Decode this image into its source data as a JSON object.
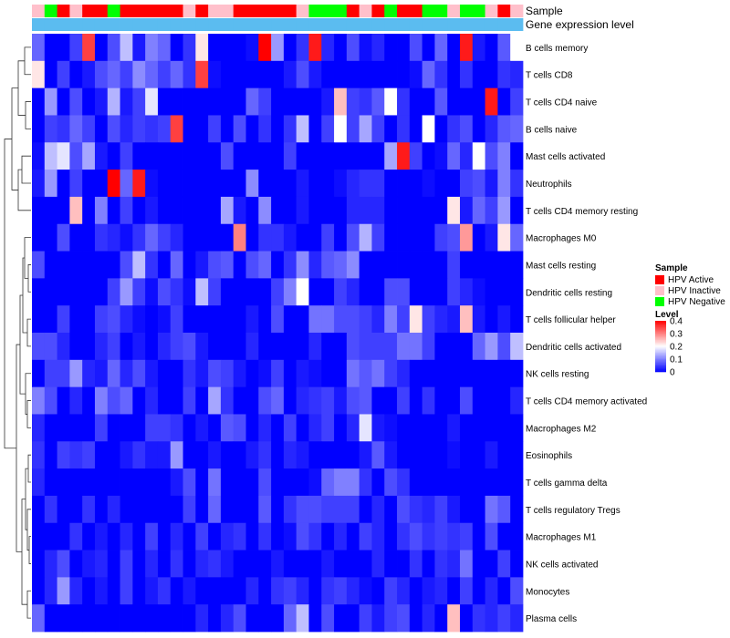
{
  "chart_data": {
    "type": "heatmap",
    "rows": [
      "B cells memory",
      "T cells CD8",
      "T cells CD4 naive",
      "B cells naive",
      "Mast cells activated",
      "Neutrophils",
      "T cells CD4 memory resting",
      "Macrophages M0",
      "Mast cells resting",
      "Dendritic cells resting",
      "T cells follicular helper",
      "Dendritic cells activated",
      "NK cells resting",
      "T cells CD4 memory activated",
      "Macrophages M2",
      "Eosinophils",
      "T cells gamma delta",
      "T cells regulatory  Tregs",
      "Macrophages M1",
      "NK cells activated",
      "Monocytes",
      "Plasma cells"
    ],
    "sample_groups": [
      1,
      2,
      0,
      1,
      0,
      0,
      2,
      0,
      0,
      0,
      0,
      0,
      1,
      0,
      1,
      1,
      0,
      0,
      0,
      0,
      0,
      1,
      2,
      2,
      2,
      0,
      1,
      0,
      2,
      0,
      0,
      2,
      2,
      1,
      2,
      2,
      1,
      0,
      1
    ],
    "annotation_rows": [
      "Sample",
      "Gene expression level"
    ],
    "gene_expression_level": [
      0.05,
      0.05,
      0.05,
      0.05,
      0.05,
      0.05,
      0.05,
      0.05,
      0.05,
      0.05,
      0.05,
      0.05,
      0.05,
      0.05,
      0.05,
      0.05,
      0.05,
      0.05,
      0.05,
      0.05,
      0.05,
      0.05,
      0.05,
      0.05,
      0.05,
      0.05,
      0.05,
      0.05,
      0.05,
      0.05,
      0.05,
      0.05,
      0.05,
      0.05,
      0.05,
      0.05,
      0.05,
      0.05,
      0.05
    ],
    "values": [
      [
        0.08,
        0,
        0,
        0.05,
        0.35,
        0,
        0.06,
        0.15,
        0.02,
        0.1,
        0.08,
        0,
        0.04,
        0.22,
        0,
        0,
        0,
        0.01,
        0.4,
        0.12,
        0,
        0.04,
        0.38,
        0.03,
        0,
        0.06,
        0.01,
        0.03,
        0,
        0,
        0.06,
        0,
        0.08,
        0,
        0.38,
        0.02,
        0,
        0.07,
        0.2
      ],
      [
        0.22,
        0,
        0.05,
        0,
        0.02,
        0.06,
        0.08,
        0.05,
        0.11,
        0.08,
        0.05,
        0.08,
        0.04,
        0.35,
        0.01,
        0,
        0,
        0,
        0,
        0,
        0.02,
        0.06,
        0.02,
        0,
        0,
        0,
        0,
        0,
        0,
        0,
        0.01,
        0.08,
        0.04,
        0,
        0.04,
        0,
        0,
        0.04,
        0.03
      ],
      [
        0,
        0.12,
        0,
        0.06,
        0,
        0.02,
        0.14,
        0.02,
        0.05,
        0.18,
        0,
        0,
        0,
        0,
        0,
        0,
        0,
        0.08,
        0.05,
        0,
        0,
        0,
        0,
        0.02,
        0.25,
        0.05,
        0.04,
        0.07,
        0.2,
        0.04,
        0,
        0,
        0.07,
        0,
        0,
        0,
        0.38,
        0,
        0.05
      ],
      [
        0,
        0.05,
        0.04,
        0.08,
        0.05,
        0,
        0.06,
        0.03,
        0.05,
        0.04,
        0.05,
        0.35,
        0,
        0,
        0.05,
        0,
        0.06,
        0,
        0.04,
        0,
        0.04,
        0.15,
        0,
        0.05,
        0.2,
        0.05,
        0.13,
        0.05,
        0,
        0.04,
        0,
        0.2,
        0,
        0.04,
        0.06,
        0,
        0.03,
        0.07,
        0.08
      ],
      [
        0.01,
        0.15,
        0.18,
        0.06,
        0.13,
        0.02,
        0,
        0.05,
        0,
        0,
        0,
        0,
        0,
        0,
        0,
        0.06,
        0,
        0,
        0,
        0,
        0.05,
        0,
        0,
        0,
        0,
        0,
        0,
        0,
        0.13,
        0.38,
        0.05,
        0,
        0.01,
        0.08,
        0.03,
        0.2,
        0.06,
        0.1,
        0
      ],
      [
        0.02,
        0.12,
        0,
        0.05,
        0,
        0,
        0.4,
        0.08,
        0.38,
        0.01,
        0,
        0,
        0,
        0,
        0,
        0,
        0,
        0.11,
        0,
        0,
        0,
        0.02,
        0,
        0,
        0.01,
        0.03,
        0.04,
        0.04,
        0,
        0,
        0,
        0.01,
        0,
        0,
        0.05,
        0.06,
        0.02,
        0.1,
        0.04
      ],
      [
        0,
        0,
        0,
        0.25,
        0,
        0.1,
        0,
        0.05,
        0,
        0.02,
        0,
        0,
        0,
        0,
        0,
        0.13,
        0.02,
        0,
        0.11,
        0,
        0,
        0.02,
        0,
        0,
        0,
        0.03,
        0.03,
        0.03,
        0,
        0,
        0,
        0,
        0,
        0.22,
        0.02,
        0.08,
        0.05,
        0.12,
        0
      ],
      [
        0,
        0,
        0.06,
        0,
        0,
        0.04,
        0.03,
        0.01,
        0.04,
        0.08,
        0.05,
        0.03,
        0,
        0,
        0,
        0,
        0.3,
        0,
        0.04,
        0.04,
        0.02,
        0,
        0,
        0.05,
        0,
        0.06,
        0.14,
        0.05,
        0,
        0,
        0,
        0,
        0.05,
        0.06,
        0.28,
        0,
        0.02,
        0.22,
        0.08
      ],
      [
        0.06,
        0,
        0,
        0,
        0,
        0,
        0,
        0.06,
        0.15,
        0.04,
        0,
        0.08,
        0,
        0.02,
        0.06,
        0.07,
        0,
        0.06,
        0.08,
        0,
        0.04,
        0.11,
        0.03,
        0.07,
        0.08,
        0.11,
        0,
        0,
        0,
        0,
        0,
        0,
        0,
        0.05,
        0,
        0,
        0,
        0,
        0
      ],
      [
        0,
        0,
        0,
        0,
        0,
        0,
        0.05,
        0.12,
        0.05,
        0.01,
        0.06,
        0.04,
        0.01,
        0.15,
        0.05,
        0,
        0,
        0,
        0,
        0.05,
        0.1,
        0.2,
        0,
        0,
        0.05,
        0.03,
        0,
        0,
        0.06,
        0.06,
        0,
        0,
        0,
        0.05,
        0.03,
        0.01,
        0,
        0,
        0
      ],
      [
        0,
        0,
        0.05,
        0,
        0,
        0.05,
        0.06,
        0.03,
        0.01,
        0,
        0.01,
        0.05,
        0,
        0,
        0,
        0,
        0,
        0.02,
        0,
        0.06,
        0,
        0,
        0.09,
        0.09,
        0.06,
        0.06,
        0.05,
        0.03,
        0.1,
        0.05,
        0.22,
        0.05,
        0.03,
        0.02,
        0.25,
        0.02,
        0,
        0.02,
        0
      ],
      [
        0.06,
        0.06,
        0.03,
        0,
        0,
        0.03,
        0.05,
        0,
        0.02,
        0,
        0.03,
        0.05,
        0.06,
        0.02,
        0,
        0,
        0,
        0.03,
        0,
        0,
        0,
        0,
        0.03,
        0,
        0,
        0.06,
        0.05,
        0.05,
        0.05,
        0.09,
        0.09,
        0.05,
        0,
        0,
        0,
        0.08,
        0.12,
        0.06,
        0.15
      ],
      [
        0,
        0.05,
        0.05,
        0.12,
        0.03,
        0.02,
        0.08,
        0.03,
        0.06,
        0.02,
        0,
        0,
        0.04,
        0.02,
        0.06,
        0.05,
        0.02,
        0,
        0.01,
        0.05,
        0,
        0.02,
        0.01,
        0,
        0,
        0.09,
        0.07,
        0.09,
        0.05,
        0.03,
        0,
        0,
        0,
        0,
        0,
        0,
        0,
        0,
        0
      ],
      [
        0.1,
        0.06,
        0,
        0.03,
        0,
        0.1,
        0.06,
        0.08,
        0,
        0.03,
        0,
        0,
        0.05,
        0,
        0.13,
        0.04,
        0,
        0,
        0.06,
        0.08,
        0,
        0.03,
        0.04,
        0.05,
        0.02,
        0.06,
        0.07,
        0,
        0,
        0.05,
        0,
        0.04,
        0,
        0,
        0.06,
        0,
        0,
        0,
        0.03
      ],
      [
        0.03,
        0,
        0,
        0,
        0,
        0.05,
        0,
        0,
        0,
        0.05,
        0.05,
        0.04,
        0,
        0.02,
        0,
        0.07,
        0.06,
        0,
        0.03,
        0,
        0.05,
        0,
        0.03,
        0.05,
        0,
        0.03,
        0.18,
        0.02,
        0.01,
        0,
        0,
        0,
        0,
        0.02,
        0,
        0,
        0,
        0,
        0
      ],
      [
        0.04,
        0,
        0.05,
        0.04,
        0.05,
        0,
        0,
        0.02,
        0.04,
        0.02,
        0.02,
        0.12,
        0,
        0,
        0.02,
        0,
        0,
        0.02,
        0.04,
        0,
        0.03,
        0.02,
        0,
        0,
        0,
        0,
        0.02,
        0.07,
        0.02,
        0,
        0,
        0,
        0,
        0.01,
        0,
        0,
        0.02,
        0,
        0
      ],
      [
        0.03,
        0,
        0,
        0,
        0,
        0,
        0,
        0,
        0,
        0,
        0,
        0.02,
        0.06,
        0,
        0.09,
        0,
        0,
        0,
        0.06,
        0,
        0,
        0,
        0.01,
        0.08,
        0.1,
        0.1,
        0.04,
        0,
        0.06,
        0.04,
        0,
        0,
        0,
        0,
        0,
        0,
        0,
        0,
        0
      ],
      [
        0,
        0.04,
        0,
        0,
        0.04,
        0,
        0.03,
        0,
        0,
        0,
        0,
        0,
        0.05,
        0,
        0.08,
        0,
        0,
        0,
        0.07,
        0,
        0.04,
        0.06,
        0.06,
        0.05,
        0.05,
        0.05,
        0,
        0.03,
        0,
        0.06,
        0.04,
        0.03,
        0.05,
        0.02,
        0,
        0,
        0.09,
        0.07,
        0
      ],
      [
        0,
        0,
        0,
        0.04,
        0,
        0.02,
        0,
        0.03,
        0,
        0.05,
        0,
        0.03,
        0,
        0.05,
        0,
        0.03,
        0.04,
        0,
        0.04,
        0,
        0.01,
        0.06,
        0.04,
        0,
        0.03,
        0,
        0.05,
        0.03,
        0,
        0.04,
        0.06,
        0.04,
        0.05,
        0.04,
        0.05,
        0,
        0.06,
        0,
        0
      ],
      [
        0,
        0.03,
        0.06,
        0,
        0.02,
        0.03,
        0,
        0.05,
        0,
        0.03,
        0,
        0.04,
        0,
        0.03,
        0.04,
        0.02,
        0,
        0,
        0,
        0.02,
        0,
        0,
        0,
        0.02,
        0,
        0,
        0,
        0.03,
        0,
        0,
        0.04,
        0,
        0.04,
        0.03,
        0.09,
        0,
        0,
        0.05,
        0
      ],
      [
        0,
        0.03,
        0.12,
        0.03,
        0,
        0.02,
        0,
        0.05,
        0,
        0.02,
        0.04,
        0,
        0.02,
        0,
        0,
        0,
        0,
        0.03,
        0,
        0.04,
        0.05,
        0.03,
        0,
        0.04,
        0.05,
        0.03,
        0.01,
        0,
        0.05,
        0.03,
        0,
        0.02,
        0.03,
        0,
        0.05,
        0,
        0.03,
        0,
        0.06
      ],
      [
        0.08,
        0,
        0,
        0,
        0,
        0,
        0,
        0,
        0,
        0,
        0,
        0,
        0,
        0.03,
        0,
        0.03,
        0.06,
        0,
        0,
        0,
        0.08,
        0.15,
        0,
        0.06,
        0,
        0,
        0.05,
        0.02,
        0.05,
        0.06,
        0,
        0.03,
        0,
        0.25,
        0,
        0.04,
        0.03,
        0.05,
        0.03
      ]
    ],
    "legend": {
      "sample_title": "Sample",
      "groups": [
        {
          "name": "HPV Active",
          "color": "#ff0000"
        },
        {
          "name": "HPV Inactive",
          "color": "#ffc0cb"
        },
        {
          "name": "HPV Negative",
          "color": "#00ff00"
        }
      ],
      "level_title": "Level",
      "level_ticks": [
        "0.4",
        "0.3",
        "0.2",
        "0.1",
        "0"
      ],
      "level_tick_values": [
        0.4,
        0.3,
        0.2,
        0.1,
        0
      ],
      "color_scale": {
        "low": "#0000ff",
        "mid": "#ffffff",
        "high": "#ff0000",
        "min": 0,
        "mid_value": 0.2,
        "max": 0.4
      }
    },
    "expression_color": "#5bbcf0",
    "dendrogram": "left"
  }
}
